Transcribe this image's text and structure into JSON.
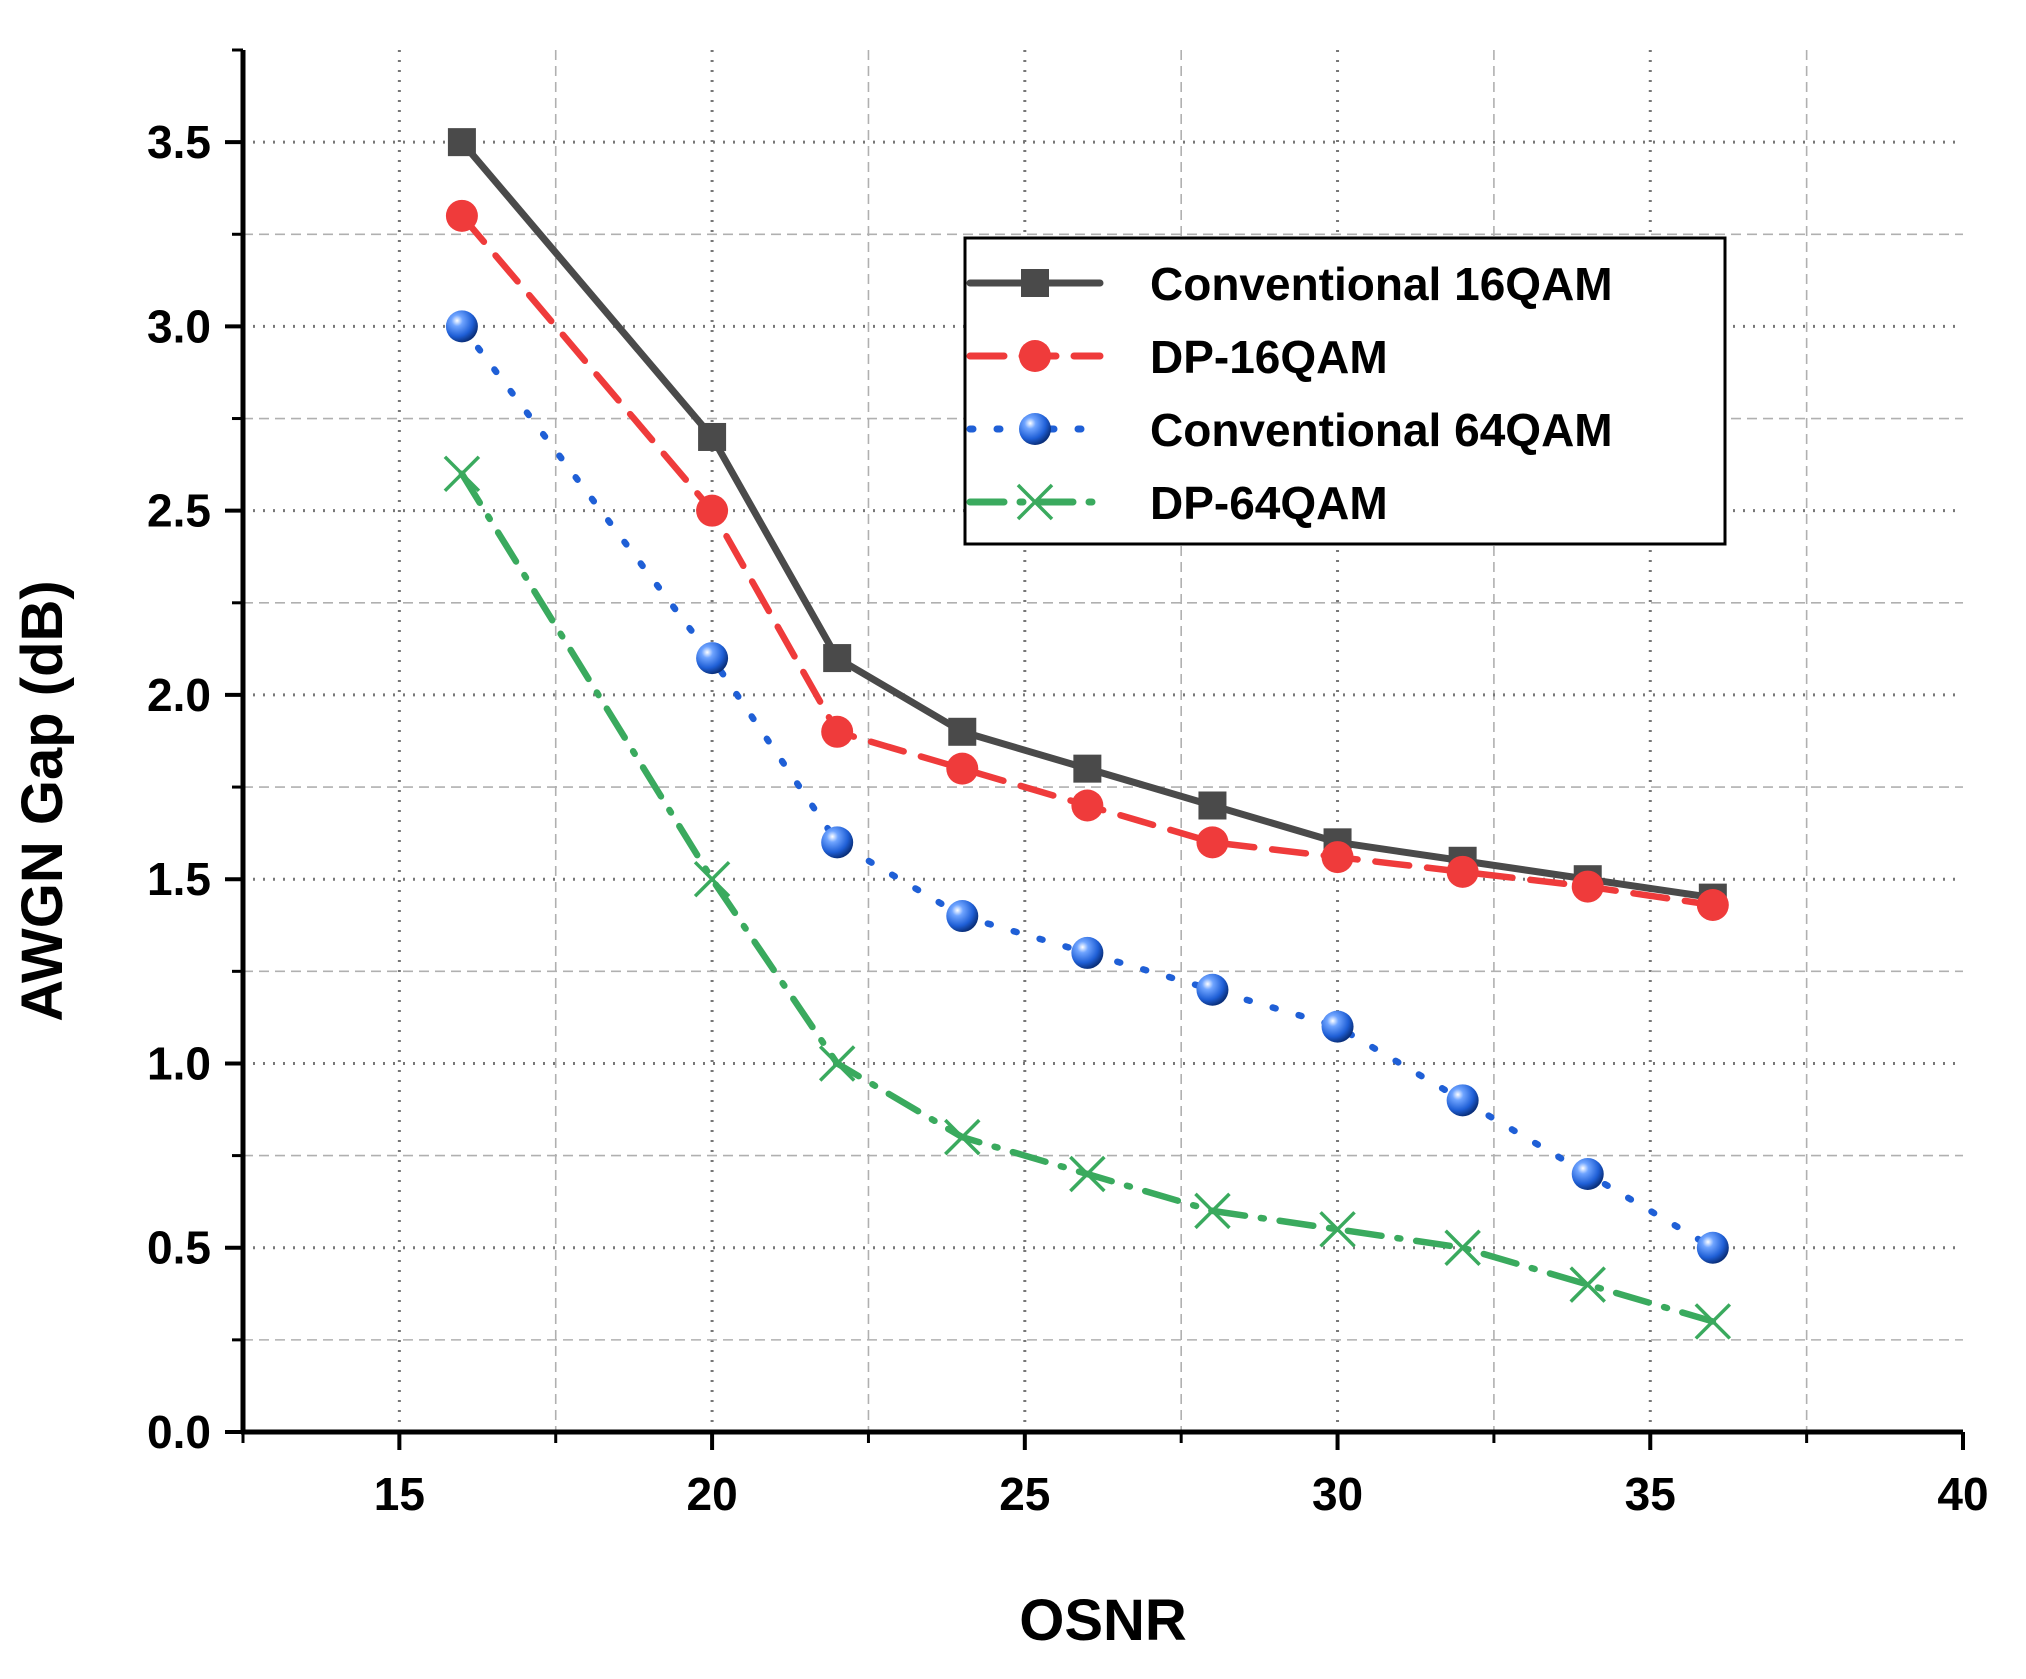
{
  "chart_data": {
    "type": "line",
    "title": "",
    "xlabel": "OSNR",
    "ylabel": "AWGN Gap (dB)",
    "xlim": [
      12.5,
      40
    ],
    "ylim": [
      0,
      3.75
    ],
    "xticks": [
      15,
      20,
      25,
      30,
      35,
      40
    ],
    "xtick_labels": [
      "15",
      "20",
      "25",
      "30",
      "35",
      "40"
    ],
    "yticks": [
      0,
      0.5,
      1,
      1.5,
      2,
      2.5,
      3,
      3.5
    ],
    "ytick_labels": [
      "0.0",
      "0.5",
      "1.0",
      "1.5",
      "2.0",
      "2.5",
      "3.0",
      "3.5"
    ],
    "grid": true,
    "legend_position": "upper-right",
    "series": [
      {
        "name": "Conventional 16QAM",
        "key": "conv16",
        "color": "#4a4a4a",
        "line_style": "solid",
        "marker": "square",
        "x": [
          16,
          20,
          22,
          24,
          26,
          28,
          30,
          32,
          34,
          36
        ],
        "y": [
          3.5,
          2.7,
          2.1,
          1.9,
          1.8,
          1.7,
          1.6,
          1.55,
          1.5,
          1.45
        ]
      },
      {
        "name": "DP-16QAM",
        "key": "dp16",
        "color": "#ef3b3b",
        "line_style": "dash",
        "marker": "circle",
        "x": [
          16,
          20,
          22,
          24,
          26,
          28,
          30,
          32,
          34,
          36
        ],
        "y": [
          3.3,
          2.5,
          1.9,
          1.8,
          1.7,
          1.6,
          1.56,
          1.52,
          1.48,
          1.43
        ]
      },
      {
        "name": "Conventional 64QAM",
        "key": "conv64",
        "color": "#1f5fd6",
        "line_style": "dot",
        "marker": "sphere",
        "x": [
          16,
          20,
          22,
          24,
          26,
          28,
          30,
          32,
          34,
          36
        ],
        "y": [
          3.0,
          2.1,
          1.6,
          1.4,
          1.3,
          1.2,
          1.1,
          0.9,
          0.7,
          0.5
        ]
      },
      {
        "name": "DP-64QAM",
        "key": "dp64",
        "color": "#3aaa5e",
        "line_style": "dashdot",
        "marker": "x",
        "x": [
          16,
          20,
          22,
          24,
          26,
          28,
          30,
          32,
          34,
          36
        ],
        "y": [
          2.6,
          1.5,
          1.0,
          0.8,
          0.7,
          0.6,
          0.55,
          0.5,
          0.4,
          0.3
        ]
      }
    ]
  }
}
